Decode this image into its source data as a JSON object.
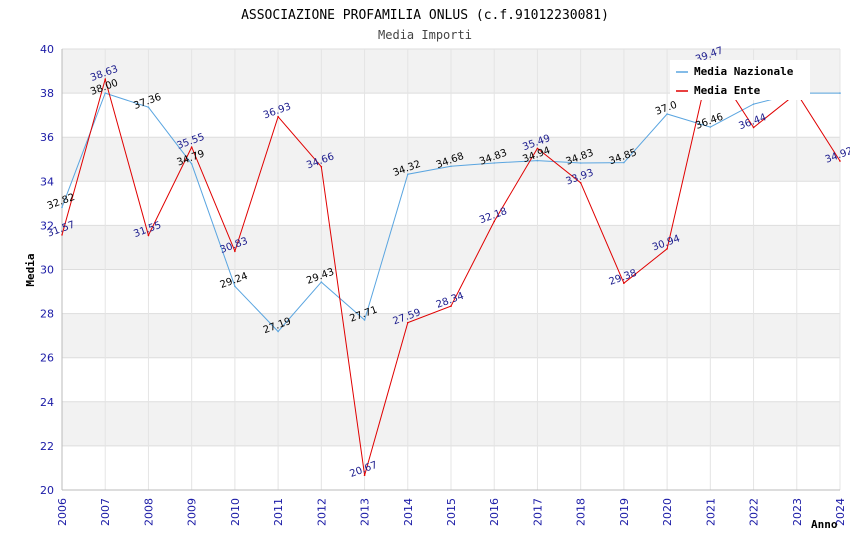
{
  "chart_data": {
    "type": "line",
    "title": "ASSOCIAZIONE PROFAMILIA ONLUS (c.f.91012230081)",
    "subtitle": "Media Importi",
    "xlabel": "Anno",
    "ylabel": "Media",
    "ylim": [
      20,
      40
    ],
    "yticks": [
      "20",
      "22",
      "24",
      "26",
      "28",
      "30",
      "32",
      "34",
      "36",
      "38",
      "40"
    ],
    "x": [
      "2006",
      "2007",
      "2008",
      "2009",
      "2010",
      "2011",
      "2012",
      "2013",
      "2014",
      "2015",
      "2016",
      "2017",
      "2018",
      "2019",
      "2020",
      "2021",
      "2022",
      "2023",
      "2024"
    ],
    "series": [
      {
        "name": "Media Nazionale",
        "color": "#5aa5e0",
        "values": [
          32.82,
          38.0,
          37.36,
          34.79,
          29.24,
          27.19,
          29.43,
          27.71,
          34.32,
          34.68,
          34.83,
          34.94,
          34.83,
          34.85,
          37.05,
          36.46,
          37.5,
          38.0,
          38.0
        ],
        "labels": [
          "32.82",
          "38.00",
          "37.36",
          "34.79",
          "29.24",
          "27.19",
          "29.43",
          "27.71",
          "34.32",
          "34.68",
          "34.83",
          "34.94",
          "34.83",
          "34.85",
          "37.0",
          "36.46",
          "",
          "",
          ""
        ]
      },
      {
        "name": "Media Ente",
        "color": "#e00000",
        "values": [
          31.57,
          38.63,
          31.55,
          35.55,
          30.83,
          36.93,
          34.66,
          20.67,
          27.59,
          28.34,
          32.18,
          35.49,
          33.93,
          29.38,
          30.94,
          39.47,
          36.44,
          38.0,
          34.92
        ],
        "labels": [
          "31.57",
          "38.63",
          "31.55",
          "35.55",
          "30.83",
          "36.93",
          "34.66",
          "20.67",
          "27.59",
          "28.34",
          "32.18",
          "35.49",
          "33.93",
          "29.38",
          "30.94",
          "39.47",
          "36.44",
          "",
          "34.92"
        ]
      }
    ],
    "legend": "top-right",
    "grid": true
  }
}
